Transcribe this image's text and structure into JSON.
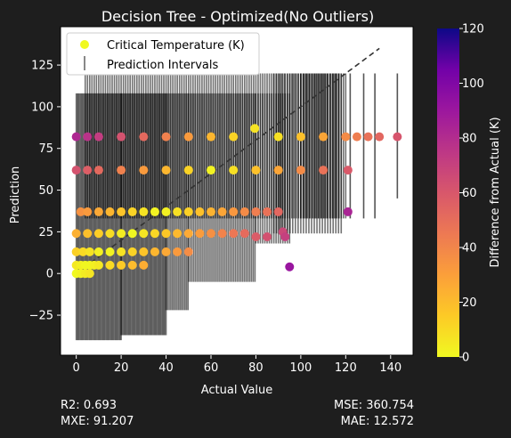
{
  "chart_data": {
    "type": "scatter",
    "title": "Decision Tree - Optimized(No Outliers)",
    "xlabel": "Actual Value",
    "ylabel": "Prediction",
    "xlim": [
      -7,
      150
    ],
    "ylim": [
      -49,
      148
    ],
    "xticks": [
      0,
      20,
      40,
      60,
      80,
      100,
      120,
      140
    ],
    "yticks": [
      -25,
      0,
      25,
      50,
      75,
      100,
      125
    ],
    "grid": false,
    "legend_position": "top-left",
    "legend": [
      {
        "label": "Critical Temperature (K)",
        "marker": "circle",
        "color": "#f0f921"
      },
      {
        "label": "Prediction Intervals",
        "marker": "vline",
        "color": "#888888"
      }
    ],
    "colorbar": {
      "label": "Difference from Actual (K)",
      "colormap": "plasma",
      "range": [
        0,
        120
      ],
      "ticks": [
        0,
        20,
        40,
        60,
        80,
        100,
        120
      ]
    },
    "reference_line": {
      "from": [
        0,
        0
      ],
      "to": [
        135,
        135
      ],
      "style": "dashed",
      "color": "#333333"
    },
    "series": [
      {
        "x": [
          0,
          5,
          10,
          20,
          30,
          40,
          50,
          60,
          70,
          79.5,
          90,
          100,
          110,
          120,
          125,
          130,
          135,
          143
        ],
        "y": [
          82,
          82,
          82,
          82,
          82,
          82,
          82,
          82,
          82,
          87,
          82,
          82,
          82,
          82,
          82,
          82,
          82,
          82
        ],
        "diff": [
          82,
          77,
          72,
          62,
          52,
          42,
          32,
          22,
          12,
          7,
          8,
          18,
          28,
          38,
          43,
          48,
          53,
          61
        ]
      },
      {
        "x": [
          0,
          5,
          10,
          20,
          30,
          40,
          50,
          60,
          70,
          80,
          90,
          100,
          110,
          121
        ],
        "y": [
          62,
          62,
          62,
          62,
          62,
          62,
          62,
          62,
          62,
          62,
          62,
          62,
          62,
          62
        ],
        "diff": [
          62,
          57,
          52,
          42,
          32,
          22,
          12,
          2,
          8,
          18,
          28,
          38,
          48,
          59
        ]
      },
      {
        "x": [
          2,
          5,
          10,
          15,
          20,
          25,
          30,
          35,
          40,
          45,
          50,
          55,
          60,
          65,
          70,
          75,
          80,
          85,
          90,
          121
        ],
        "y": [
          37,
          37,
          37,
          37,
          37,
          37,
          37,
          37,
          37,
          37,
          37,
          37,
          37,
          37,
          37,
          37,
          37,
          37,
          37,
          37
        ],
        "diff": [
          35,
          32,
          27,
          22,
          17,
          12,
          7,
          2,
          3,
          8,
          13,
          18,
          23,
          28,
          33,
          38,
          43,
          48,
          53,
          84
        ]
      },
      {
        "x": [
          0,
          5,
          10,
          15,
          20,
          25,
          30,
          35,
          40,
          45,
          50,
          55,
          60,
          65,
          70,
          75,
          80,
          85,
          92
        ],
        "y": [
          24,
          24,
          24,
          24,
          24,
          24,
          24,
          24,
          24,
          24,
          24,
          24,
          24,
          24,
          24,
          24,
          22,
          22,
          25
        ],
        "diff": [
          24,
          19,
          14,
          9,
          4,
          1,
          6,
          11,
          16,
          21,
          26,
          31,
          36,
          41,
          46,
          51,
          58,
          63,
          67
        ]
      },
      {
        "x": [
          0,
          3,
          6,
          10,
          15,
          20,
          25,
          30,
          35,
          40,
          45,
          50
        ],
        "y": [
          13,
          13,
          13,
          13,
          13,
          13,
          13,
          13,
          13,
          13,
          13,
          13
        ],
        "diff": [
          13,
          10,
          7,
          3,
          2,
          7,
          12,
          17,
          22,
          27,
          32,
          37
        ]
      },
      {
        "x": [
          0,
          2,
          4,
          6,
          8,
          10,
          15,
          20,
          25,
          30
        ],
        "y": [
          5,
          5,
          5,
          5,
          5,
          5,
          5,
          5,
          5,
          5
        ],
        "diff": [
          5,
          3,
          1,
          1,
          3,
          5,
          10,
          15,
          20,
          25
        ]
      },
      {
        "x": [
          0,
          2,
          4,
          6
        ],
        "y": [
          0,
          0,
          0,
          0
        ],
        "diff": [
          0,
          2,
          4,
          6
        ]
      },
      {
        "x": [
          93,
          95
        ],
        "y": [
          22,
          4
        ],
        "diff": [
          71,
          91
        ]
      }
    ],
    "interval_groups": [
      {
        "x_start": 0,
        "x_end": 20,
        "step": 0.5,
        "lower": -40,
        "upper": 108
      },
      {
        "x_start": 20,
        "x_end": 40,
        "step": 0.5,
        "lower": -37,
        "upper": 108
      },
      {
        "x_start": 40,
        "x_end": 50,
        "step": 0.7,
        "lower": -22,
        "upper": 108
      },
      {
        "x_start": 50,
        "x_end": 80,
        "step": 0.8,
        "lower": -5,
        "upper": 108
      },
      {
        "x_start": 80,
        "x_end": 95,
        "step": 1.0,
        "lower": 18,
        "upper": 108
      },
      {
        "x_start": 88,
        "x_end": 118,
        "step": 1.2,
        "lower": 24,
        "upper": 120
      },
      {
        "x_start": 100,
        "x_end": 118,
        "step": 1.3,
        "lower": 33,
        "upper": 120
      },
      {
        "x_start": 4,
        "x_end": 120,
        "step": 1.0,
        "lower": 33,
        "upper": 120
      }
    ],
    "interval_outliers": [
      {
        "x": 122,
        "lower": 33,
        "upper": 120
      },
      {
        "x": 128,
        "lower": 33,
        "upper": 120
      },
      {
        "x": 133,
        "lower": 33,
        "upper": 120
      },
      {
        "x": 143,
        "lower": 45,
        "upper": 120
      }
    ]
  },
  "stats": {
    "r2": "R2: 0.693",
    "mxe": "MXE: 91.207",
    "mse": "MSE: 360.754",
    "mae": "MAE: 12.572"
  }
}
